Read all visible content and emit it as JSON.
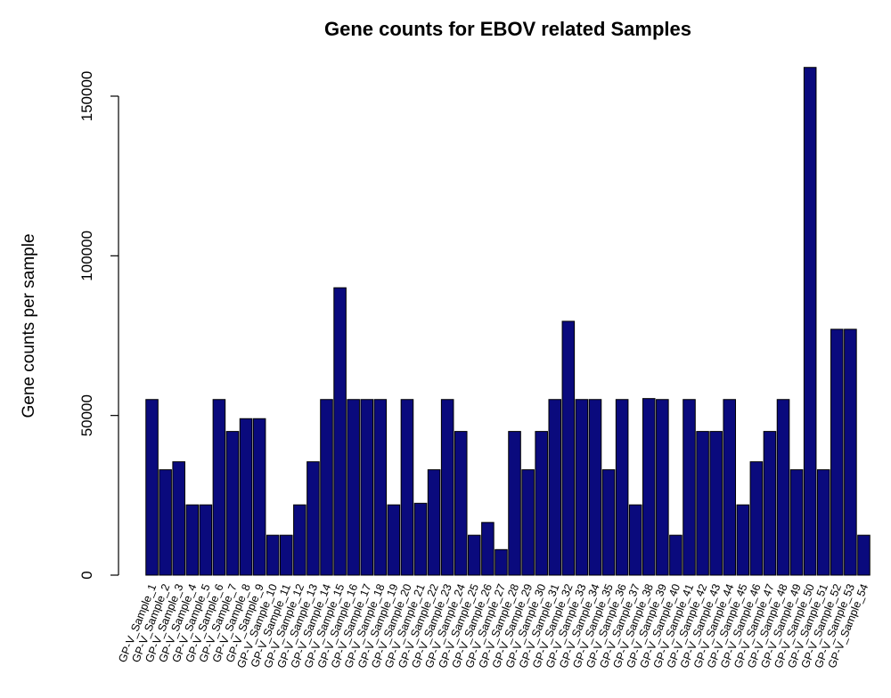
{
  "chart_data": {
    "type": "bar",
    "title": "Gene counts for EBOV related Samples",
    "xlabel": "",
    "ylabel": "Gene counts per sample",
    "ylim": [
      0,
      160000
    ],
    "yticks": [
      0,
      50000,
      100000,
      150000
    ],
    "ytick_labels": [
      "0",
      "50000",
      "100000",
      "150000"
    ],
    "bar_color": "#0a0a7d",
    "grid": false,
    "categories": [
      "GP-V_Sample_1",
      "GP-V_Sample_2",
      "GP-V_Sample_3",
      "GP-V_Sample_4",
      "GP-V_Sample_5",
      "GP-V_Sample_6",
      "GP-V_Sample_7",
      "GP-V_Sample_8",
      "GP-V_Sample_9",
      "GP-V_Sample_10",
      "GP-V_Sample_11",
      "GP-V_Sample_12",
      "GP-V_Sample_13",
      "GP-V_Sample_14",
      "GP-V_Sample_15",
      "GP-V_Sample_16",
      "GP-V_Sample_17",
      "GP-V_Sample_18",
      "GP-V_Sample_19",
      "GP-V_Sample_20",
      "GP-V_Sample_21",
      "GP-V_Sample_22",
      "GP-V_Sample_23",
      "GP-V_Sample_24",
      "GP-V_Sample_25",
      "GP-V_Sample_26",
      "GP-V_Sample_27",
      "GP-V_Sample_28",
      "GP-V_Sample_29",
      "GP-V_Sample_30",
      "GP-V_Sample_31",
      "GP-V_Sample_32",
      "GP-V_Sample_33",
      "GP-V_Sample_34",
      "GP-V_Sample_35",
      "GP-V_Sample_36",
      "GP-V_Sample_37",
      "GP-V_Sample_38",
      "GP-V_Sample_39",
      "GP-V_Sample_40",
      "GP-V_Sample_41",
      "GP-V_Sample_42",
      "GP-V_Sample_43",
      "GP-V_Sample_44",
      "GP-V_Sample_45",
      "GP-V_Sample_46",
      "GP-V_Sample_47",
      "GP-V_Sample_48",
      "GP-V_Sample_49",
      "GP-V_Sample_50",
      "GP-V_Sample_51",
      "GP-V_Sample_52",
      "GP-V_Sample_53",
      "GP-V_Sample_54"
    ],
    "values": [
      55000,
      33000,
      35500,
      22000,
      22000,
      55000,
      45000,
      49000,
      49000,
      12500,
      12500,
      22000,
      35500,
      55000,
      90000,
      55000,
      55000,
      55000,
      22000,
      55000,
      22500,
      33000,
      55000,
      45000,
      12500,
      16500,
      8000,
      45000,
      33000,
      45000,
      55000,
      79500,
      55000,
      55000,
      33000,
      55000,
      22000,
      55300,
      55000,
      12500,
      55000,
      45000,
      45000,
      55000,
      22000,
      35500,
      45000,
      55000,
      33000,
      159000,
      33000,
      77000,
      77000,
      12500
    ]
  }
}
